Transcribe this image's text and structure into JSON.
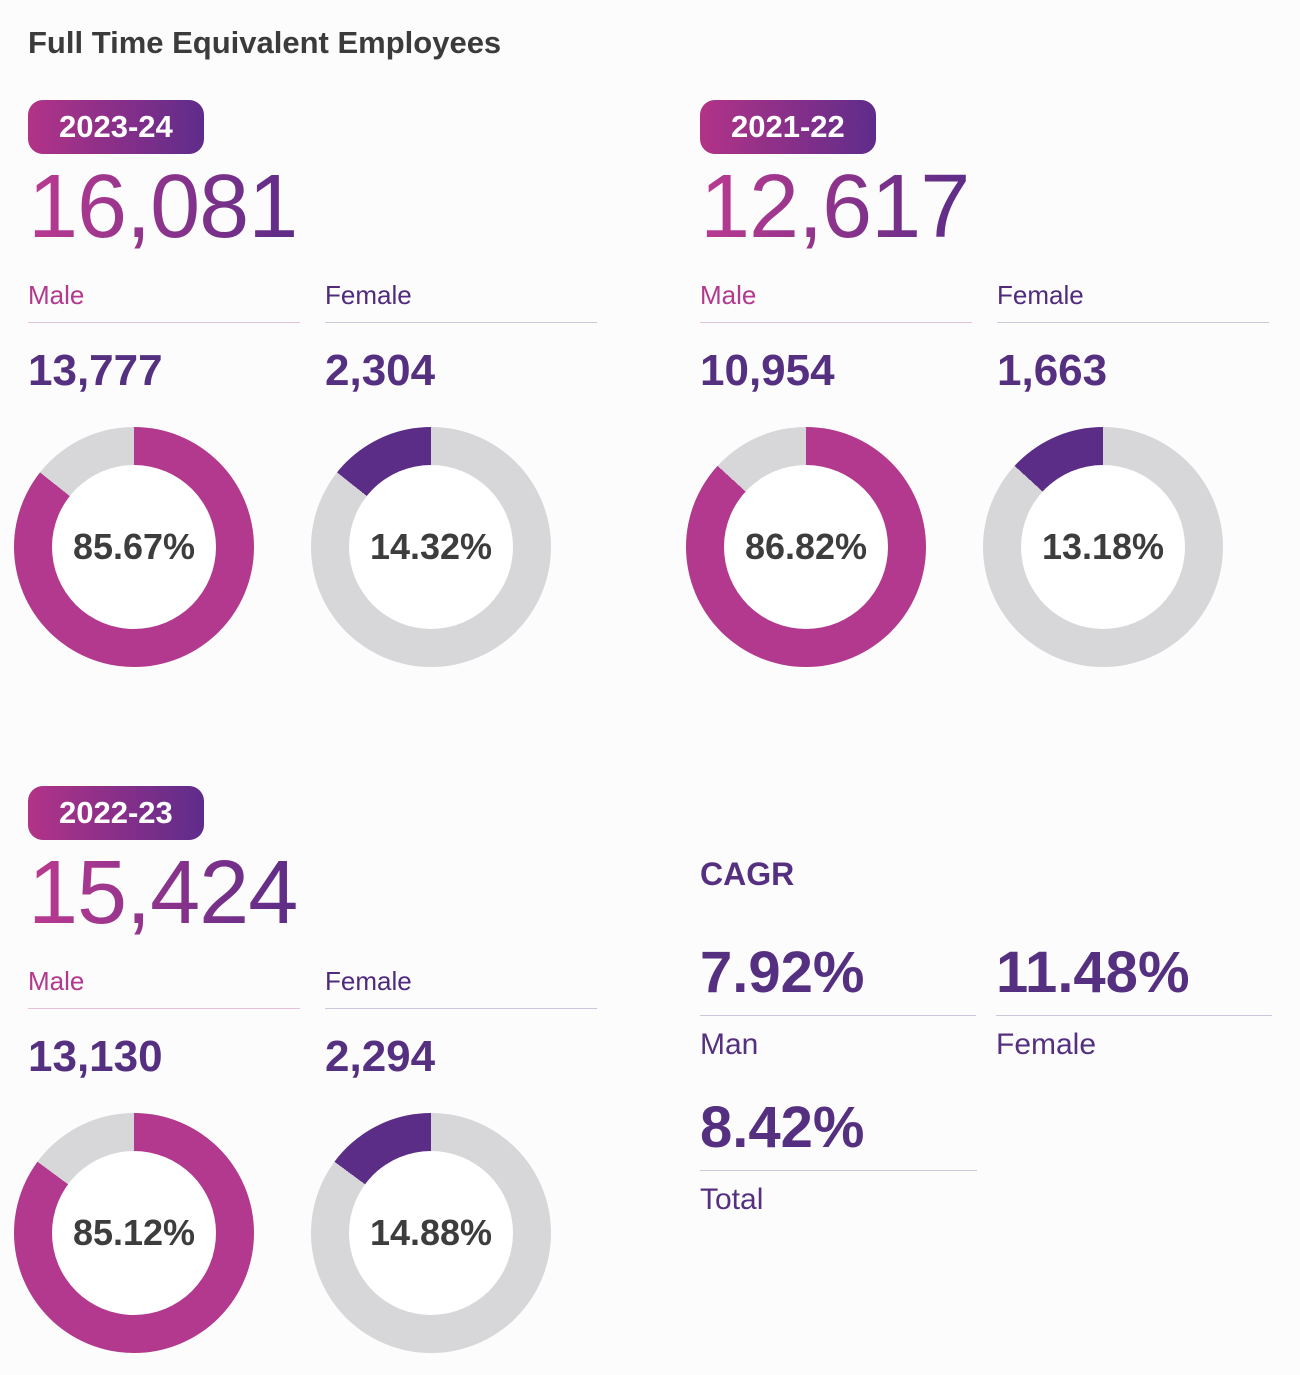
{
  "title": "Full Time Equivalent Employees",
  "colors": {
    "bg": "#fcfcfc",
    "hole": "#ffffff",
    "title": "#3b3b3b",
    "badge_start": "#b23387",
    "badge_end": "#5f2c8b",
    "total_start": "#bb3a90",
    "total_end": "#5c2d87",
    "male": "#b2398d",
    "male_underline": "#e4c2da",
    "female": "#5c2d87",
    "female_label": "#4f2a7f",
    "female_underline": "#cfc5dc",
    "track": "#d7d6d8",
    "center_text": "#3d3d3d",
    "dark": "#563080",
    "cagr_underline": "#cfc6db"
  },
  "panels": [
    {
      "year": "2023-24",
      "total": "16,081",
      "male": {
        "label": "Male",
        "value": "13,777",
        "pct": 85.67,
        "pct_label": "85.67%"
      },
      "female": {
        "label": "Female",
        "value": "2,304",
        "pct": 14.32,
        "pct_label": "14.32%"
      }
    },
    {
      "year": "2021-22",
      "total": "12,617",
      "male": {
        "label": "Male",
        "value": "10,954",
        "pct": 86.82,
        "pct_label": "86.82%"
      },
      "female": {
        "label": "Female",
        "value": "1,663",
        "pct": 13.18,
        "pct_label": "13.18%"
      }
    },
    {
      "year": "2022-23",
      "total": "15,424",
      "male": {
        "label": "Male",
        "value": "13,130",
        "pct": 85.12,
        "pct_label": "85.12%"
      },
      "female": {
        "label": "Female",
        "value": "2,294",
        "pct": 14.88,
        "pct_label": "14.88%"
      }
    }
  ],
  "cagr": {
    "heading": "CAGR",
    "items": [
      {
        "value": "7.92%",
        "label": "Man"
      },
      {
        "value": "11.48%",
        "label": "Female"
      },
      {
        "value": "8.42%",
        "label": "Total"
      }
    ]
  },
  "chart_data": [
    {
      "type": "pie",
      "title": "2023-24 Full Time Equivalent Employees by gender",
      "categories": [
        "Male",
        "Female"
      ],
      "values": [
        85.67,
        14.32
      ],
      "counts": [
        13777,
        2304
      ],
      "total_label": "16,081",
      "unit": "%",
      "colors": [
        "#b2398d",
        "#5c2d87"
      ],
      "style": "two donut gauges, active slice vs #d7d6d8 remainder, percent shown in center"
    },
    {
      "type": "pie",
      "title": "2021-22 Full Time Equivalent Employees by gender",
      "categories": [
        "Male",
        "Female"
      ],
      "values": [
        86.82,
        13.18
      ],
      "counts": [
        10954,
        1663
      ],
      "total_label": "12,617",
      "unit": "%",
      "colors": [
        "#b2398d",
        "#5c2d87"
      ],
      "style": "two donut gauges, active slice vs #d7d6d8 remainder, percent shown in center"
    },
    {
      "type": "pie",
      "title": "2022-23 Full Time Equivalent Employees by gender",
      "categories": [
        "Male",
        "Female"
      ],
      "values": [
        85.12,
        14.88
      ],
      "counts": [
        13130,
        2294
      ],
      "total_label": "15,424",
      "unit": "%",
      "colors": [
        "#b2398d",
        "#5c2d87"
      ],
      "style": "two donut gauges, active slice vs #d7d6d8 remainder, percent shown in center"
    },
    {
      "type": "table",
      "title": "CAGR",
      "categories": [
        "Man",
        "Female",
        "Total"
      ],
      "values": [
        7.92,
        11.48,
        8.42
      ],
      "unit": "%"
    }
  ]
}
